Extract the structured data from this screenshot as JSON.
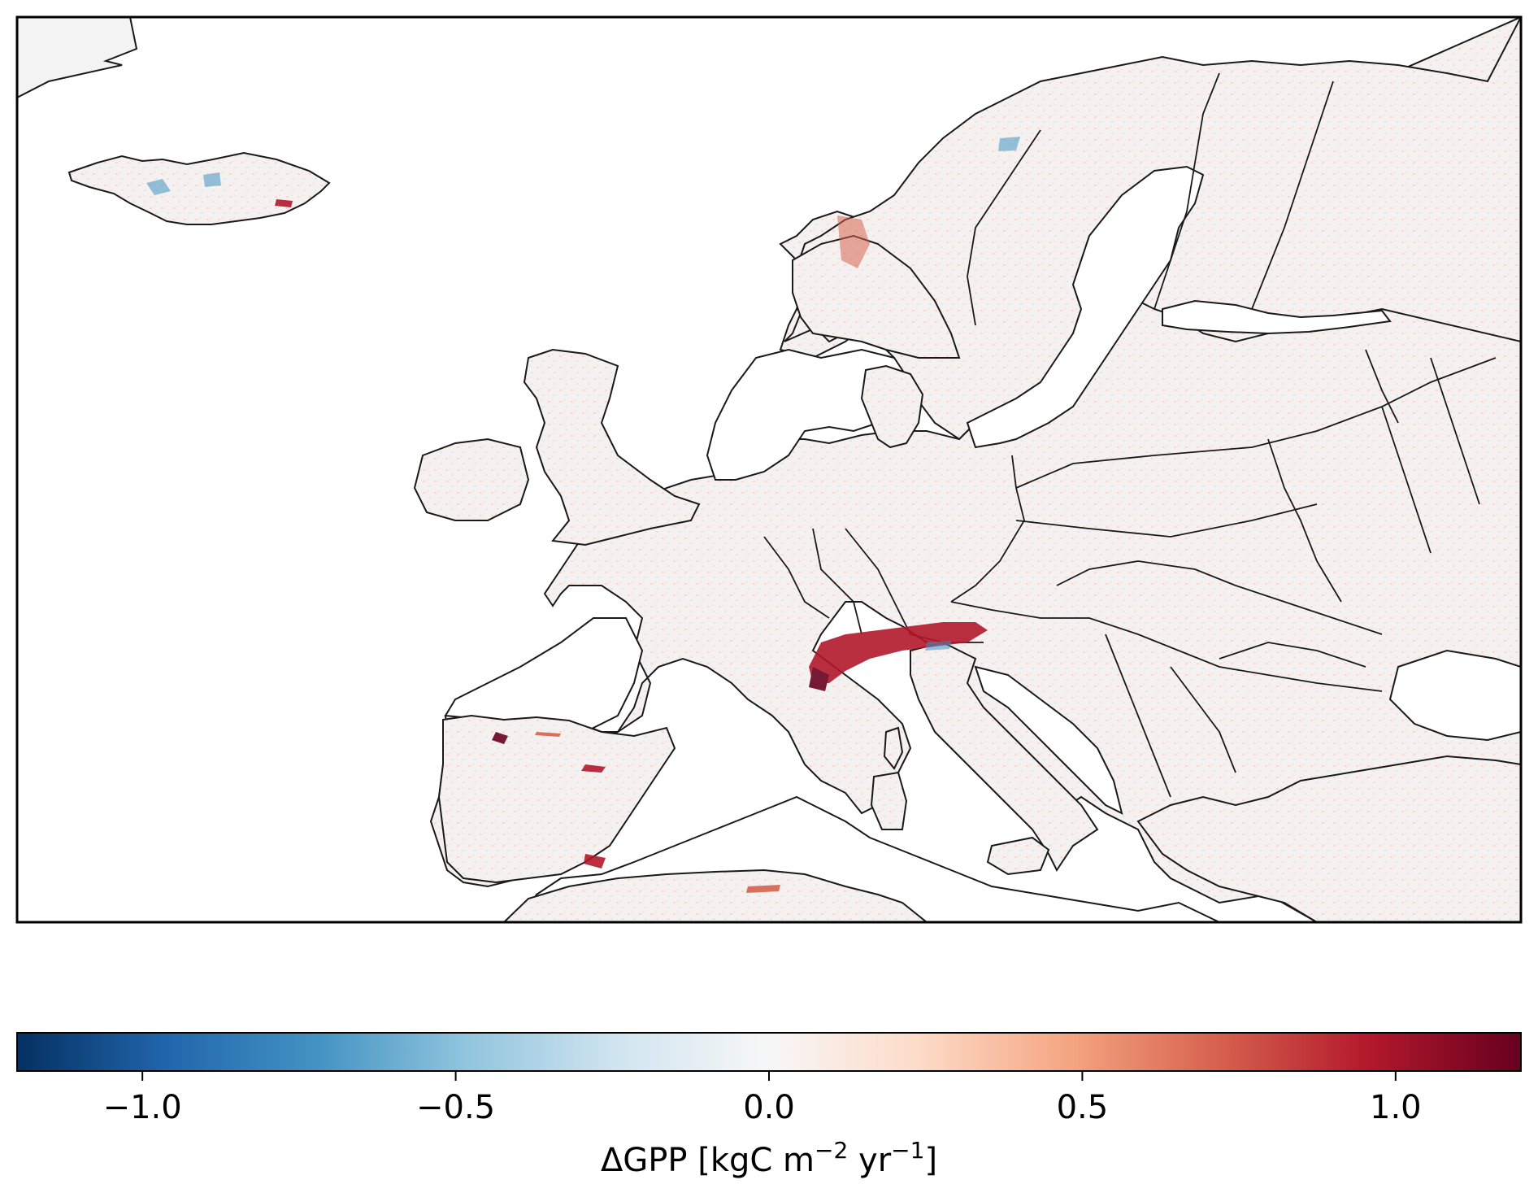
{
  "colorbar": {
    "label_main": "ΔGPP [kgC m",
    "label_exp1": "−2",
    "label_mid": " yr",
    "label_exp2": "−1",
    "label_end": "]",
    "range": [
      -1.2,
      1.2
    ],
    "ticks": [
      {
        "value": -1.0,
        "label": "−1.0"
      },
      {
        "value": -0.5,
        "label": "−0.5"
      },
      {
        "value": 0.0,
        "label": "0.0"
      },
      {
        "value": 0.5,
        "label": "0.5"
      },
      {
        "value": 1.0,
        "label": "1.0"
      }
    ],
    "colormap": "RdBu_r",
    "stops": [
      "#053061",
      "#2166ac",
      "#4393c3",
      "#92c5de",
      "#d1e5f0",
      "#f7f7f7",
      "#fddbc7",
      "#f4a582",
      "#d6604d",
      "#b2182b",
      "#67001f"
    ]
  },
  "map": {
    "region": "Europe",
    "land_color": "#f3f3f3",
    "coast_color": "#1a1a1a",
    "hotspot_color": "#b2182b",
    "cold_color": "#4393c3"
  }
}
